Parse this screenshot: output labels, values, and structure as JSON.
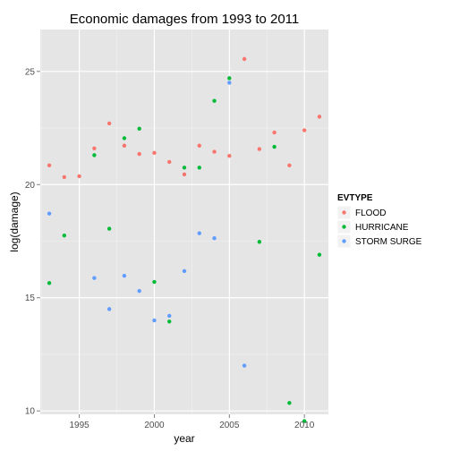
{
  "chart_data": {
    "type": "scatter",
    "title": "Economic damages from 1993 to 2011",
    "xlabel": "year",
    "ylabel": "log(damage)",
    "xlim": [
      1992.4,
      2011.6
    ],
    "ylim": [
      9.85,
      26.85
    ],
    "x_ticks": [
      1995,
      2000,
      2005,
      2010
    ],
    "y_ticks": [
      10,
      15,
      20,
      25
    ],
    "grid": true,
    "legend_position": "right",
    "legend_title": "EVTYPE",
    "series": [
      {
        "name": "FLOOD",
        "color": "#F8766D",
        "points": [
          [
            1993,
            20.85
          ],
          [
            1994,
            20.33
          ],
          [
            1995,
            20.37
          ],
          [
            1996,
            21.6
          ],
          [
            1997,
            22.7
          ],
          [
            1998,
            21.72
          ],
          [
            1999,
            21.35
          ],
          [
            2000,
            21.4
          ],
          [
            2001,
            21.0
          ],
          [
            2002,
            20.45
          ],
          [
            2003,
            21.72
          ],
          [
            2004,
            21.45
          ],
          [
            2005,
            21.27
          ],
          [
            2006,
            25.55
          ],
          [
            2007,
            21.57
          ],
          [
            2008,
            22.3
          ],
          [
            2009,
            20.85
          ],
          [
            2010,
            22.4
          ],
          [
            2011,
            23.0
          ]
        ]
      },
      {
        "name": "HURRICANE",
        "color": "#00BA38",
        "points": [
          [
            1993,
            15.65
          ],
          [
            1994,
            17.75
          ],
          [
            1996,
            21.3
          ],
          [
            1997,
            18.05
          ],
          [
            1998,
            22.05
          ],
          [
            1999,
            22.47
          ],
          [
            2000,
            15.7
          ],
          [
            2001,
            13.95
          ],
          [
            2002,
            20.75
          ],
          [
            2003,
            20.75
          ],
          [
            2004,
            23.7
          ],
          [
            2005,
            24.7
          ],
          [
            2007,
            17.47
          ],
          [
            2008,
            21.67
          ],
          [
            2009,
            10.35
          ],
          [
            2010,
            9.55
          ],
          [
            2011,
            16.9
          ]
        ]
      },
      {
        "name": "STORM SURGE",
        "color": "#619CFF",
        "points": [
          [
            1993,
            18.72
          ],
          [
            1996,
            15.87
          ],
          [
            1997,
            14.5
          ],
          [
            1998,
            15.97
          ],
          [
            1999,
            15.3
          ],
          [
            2000,
            14.0
          ],
          [
            2001,
            14.2
          ],
          [
            2002,
            16.18
          ],
          [
            2003,
            17.85
          ],
          [
            2004,
            17.63
          ],
          [
            2005,
            24.5
          ],
          [
            2006,
            12.0
          ]
        ]
      }
    ]
  }
}
